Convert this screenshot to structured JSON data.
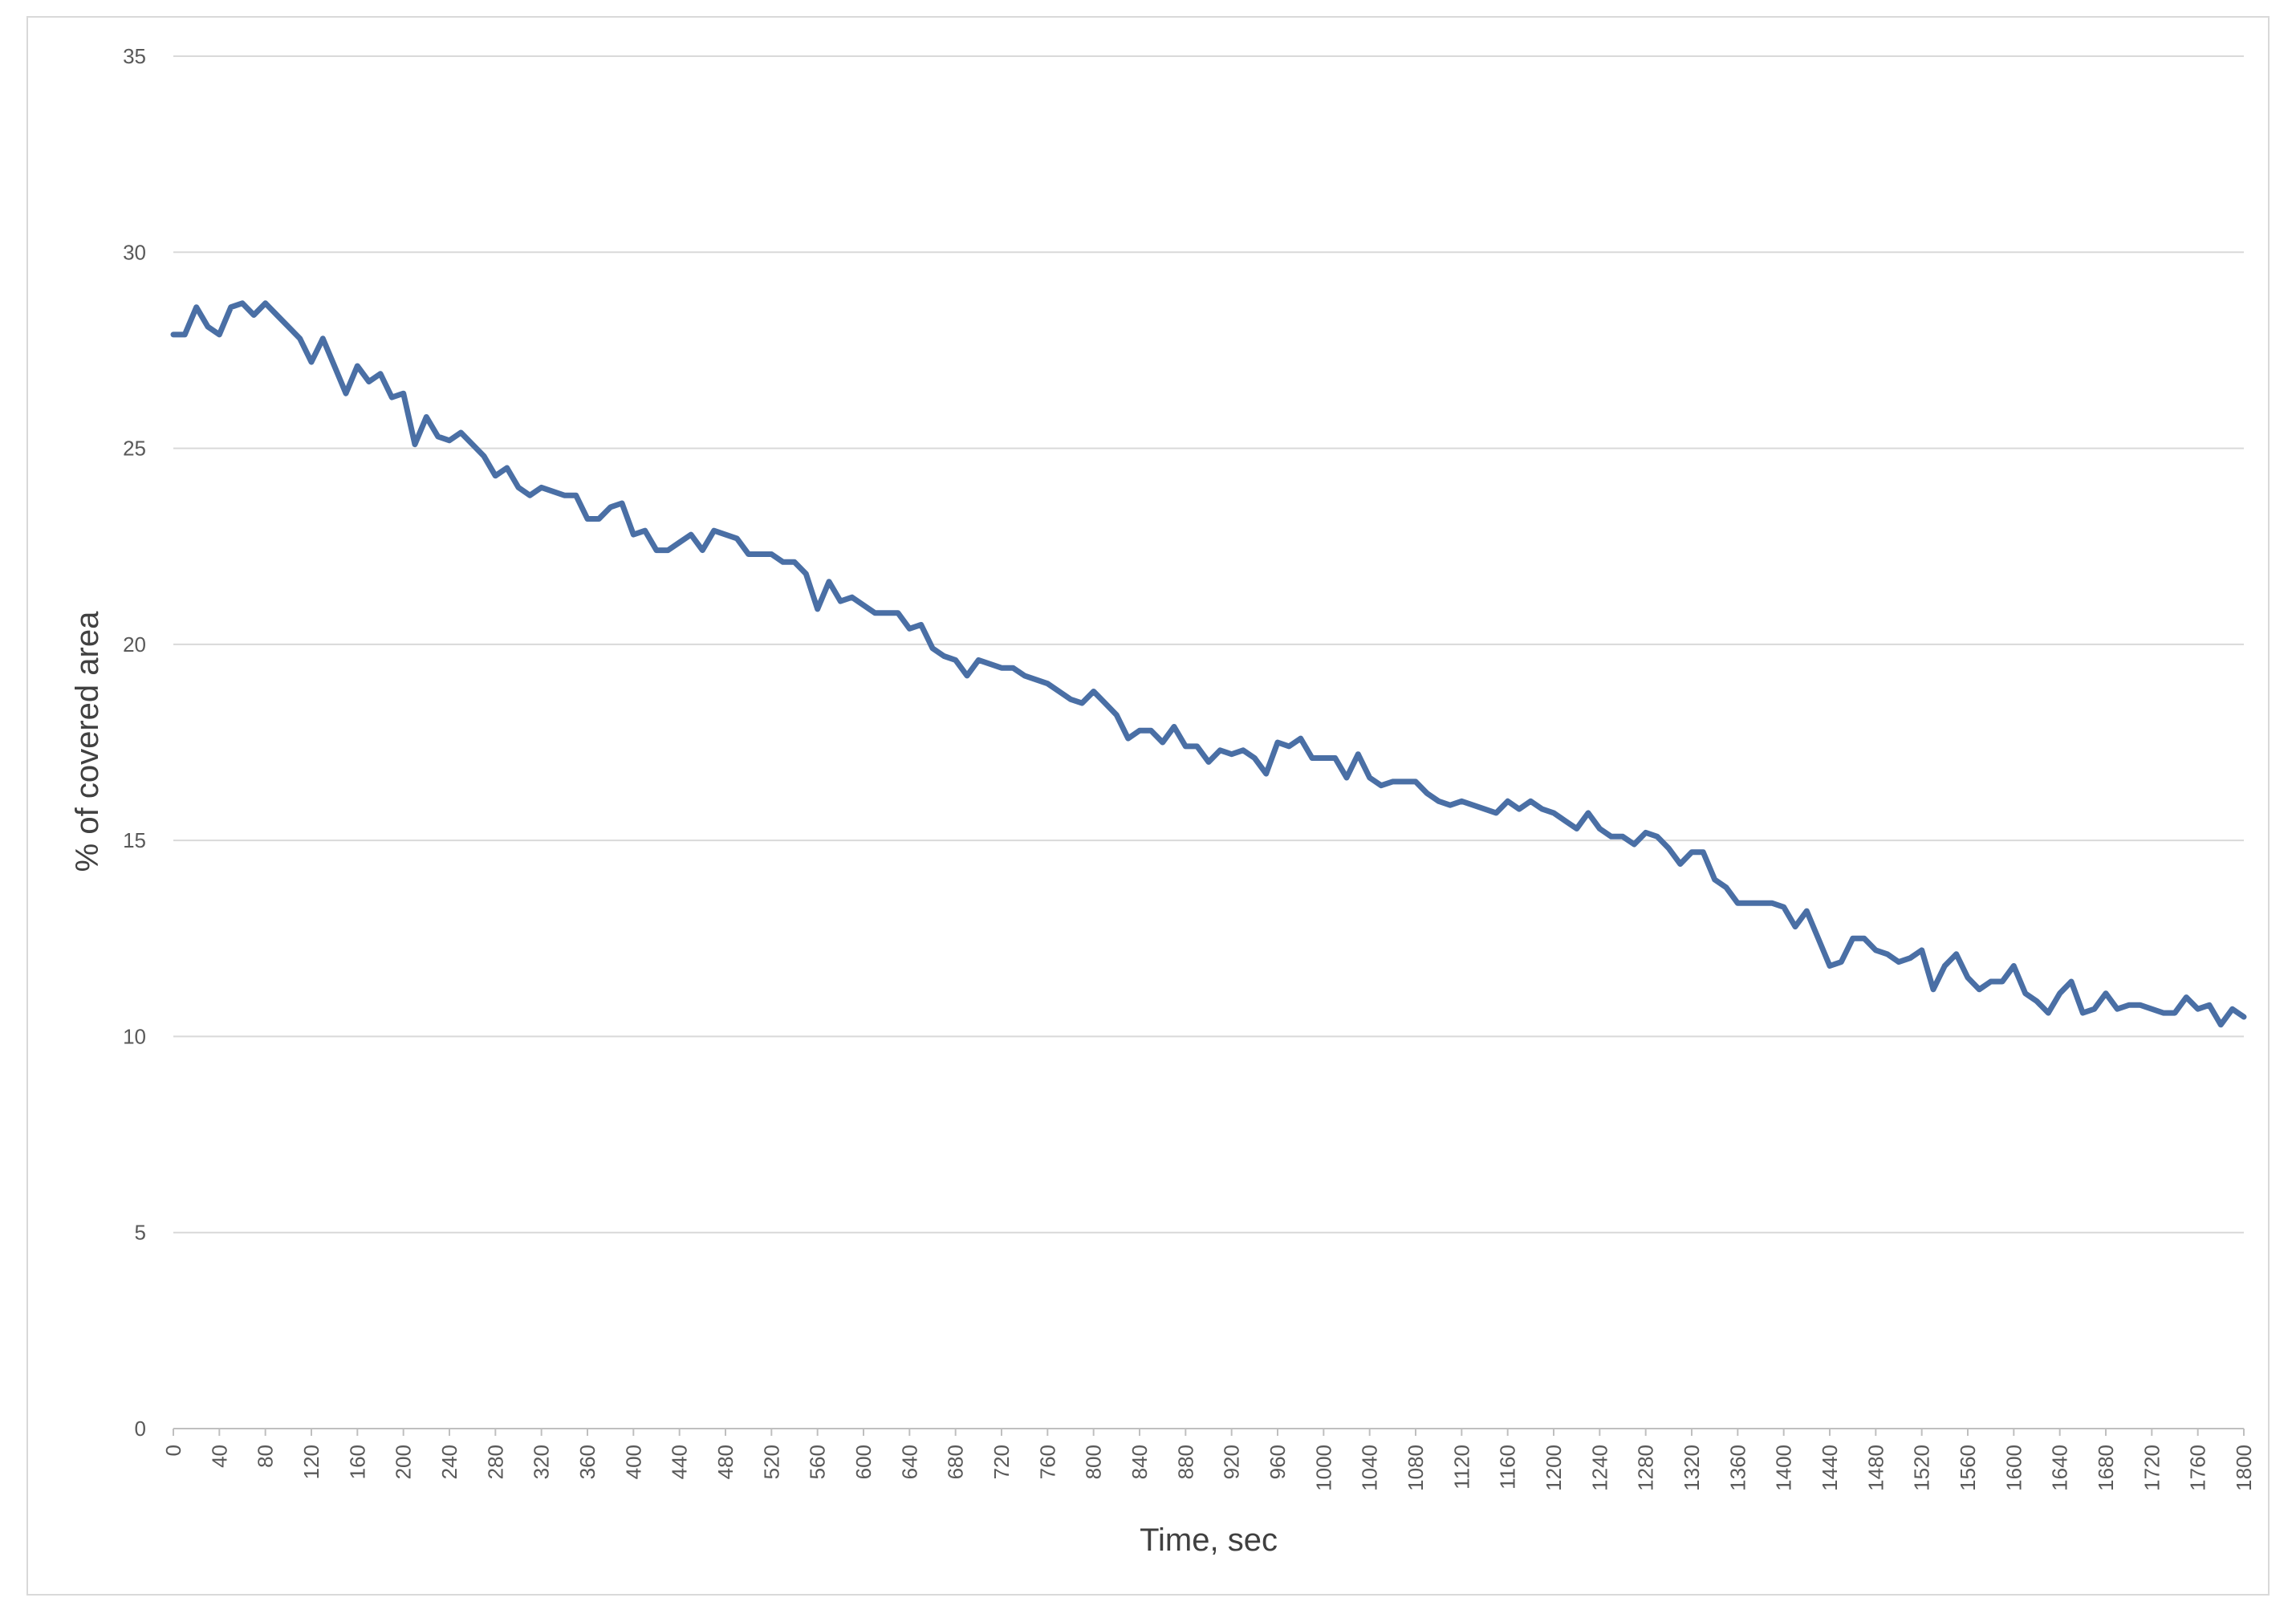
{
  "chart_data": {
    "type": "line",
    "title": "",
    "xlabel": "Time, sec",
    "ylabel": "% of covered area",
    "xlim": [
      0,
      1800
    ],
    "ylim": [
      0,
      35
    ],
    "y_ticks": [
      0,
      5,
      10,
      15,
      20,
      25,
      30,
      35
    ],
    "x_ticks": [
      0,
      40,
      80,
      120,
      160,
      200,
      240,
      280,
      320,
      360,
      400,
      440,
      480,
      520,
      560,
      600,
      640,
      680,
      720,
      760,
      800,
      840,
      880,
      920,
      960,
      1000,
      1040,
      1080,
      1120,
      1160,
      1200,
      1240,
      1280,
      1320,
      1360,
      1400,
      1440,
      1480,
      1520,
      1560,
      1600,
      1640,
      1680,
      1720,
      1760,
      1800
    ],
    "grid": true,
    "legend": "none",
    "line_color": "#4a6fa5",
    "series": [
      {
        "x": [
          0,
          10,
          20,
          30,
          40,
          50,
          60,
          70,
          80,
          90,
          100,
          110,
          120,
          130,
          140,
          150,
          160,
          170,
          180,
          190,
          200,
          210,
          220,
          230,
          240,
          250,
          260,
          270,
          280,
          290,
          300,
          310,
          320,
          330,
          340,
          350,
          360,
          370,
          380,
          390,
          400,
          410,
          420,
          430,
          440,
          450,
          460,
          470,
          480,
          490,
          500,
          510,
          520,
          530,
          540,
          550,
          560,
          570,
          580,
          590,
          600,
          610,
          620,
          630,
          640,
          650,
          660,
          670,
          680,
          690,
          700,
          710,
          720,
          730,
          740,
          750,
          760,
          770,
          780,
          790,
          800,
          810,
          820,
          830,
          840,
          850,
          860,
          870,
          880,
          890,
          900,
          910,
          920,
          930,
          940,
          950,
          960,
          970,
          980,
          990,
          1000,
          1010,
          1020,
          1030,
          1040,
          1050,
          1060,
          1070,
          1080,
          1090,
          1100,
          1110,
          1120,
          1130,
          1140,
          1150,
          1160,
          1170,
          1180,
          1190,
          1200,
          1210,
          1220,
          1230,
          1240,
          1250,
          1260,
          1270,
          1280,
          1290,
          1300,
          1310,
          1320,
          1330,
          1340,
          1350,
          1360,
          1370,
          1380,
          1390,
          1400,
          1410,
          1420,
          1430,
          1440,
          1450,
          1460,
          1470,
          1480,
          1490,
          1500,
          1510,
          1520,
          1530,
          1540,
          1550,
          1560,
          1570,
          1580,
          1590,
          1600,
          1610,
          1620,
          1630,
          1640,
          1650,
          1660,
          1670,
          1680,
          1690,
          1700,
          1710,
          1720,
          1730,
          1740,
          1750,
          1760,
          1770,
          1780,
          1790,
          1800
        ],
        "values": [
          27.9,
          27.9,
          28.6,
          28.1,
          27.9,
          28.6,
          28.7,
          28.4,
          28.7,
          28.4,
          28.1,
          27.8,
          27.2,
          27.8,
          27.1,
          26.4,
          27.1,
          26.7,
          26.9,
          26.3,
          26.4,
          25.1,
          25.8,
          25.3,
          25.2,
          25.4,
          25.1,
          24.8,
          24.3,
          24.5,
          24.0,
          23.8,
          24.0,
          23.9,
          23.8,
          23.8,
          23.2,
          23.2,
          23.5,
          23.6,
          22.8,
          22.9,
          22.4,
          22.4,
          22.6,
          22.8,
          22.4,
          22.9,
          22.8,
          22.7,
          22.3,
          22.3,
          22.3,
          22.1,
          22.1,
          21.8,
          20.9,
          21.6,
          21.1,
          21.2,
          21.0,
          20.8,
          20.8,
          20.8,
          20.4,
          20.5,
          19.9,
          19.7,
          19.6,
          19.2,
          19.6,
          19.5,
          19.4,
          19.4,
          19.2,
          19.1,
          19.0,
          18.8,
          18.6,
          18.5,
          18.8,
          18.5,
          18.2,
          17.6,
          17.8,
          17.8,
          17.5,
          17.9,
          17.4,
          17.4,
          17.0,
          17.3,
          17.2,
          17.3,
          17.1,
          16.7,
          17.5,
          17.4,
          17.6,
          17.1,
          17.1,
          17.1,
          16.6,
          17.2,
          16.6,
          16.4,
          16.5,
          16.5,
          16.5,
          16.2,
          16.0,
          15.9,
          16.0,
          15.9,
          15.8,
          15.7,
          16.0,
          15.8,
          16.0,
          15.8,
          15.7,
          15.5,
          15.3,
          15.7,
          15.3,
          15.1,
          15.1,
          14.9,
          15.2,
          15.1,
          14.8,
          14.4,
          14.7,
          14.7,
          14.0,
          13.8,
          13.4,
          13.4,
          13.4,
          13.4,
          13.3,
          12.8,
          13.2,
          12.5,
          11.8,
          11.9,
          12.5,
          12.5,
          12.2,
          12.1,
          11.9,
          12.0,
          12.2,
          11.2,
          11.8,
          12.1,
          11.5,
          11.2,
          11.4,
          11.4,
          11.8,
          11.1,
          10.9,
          10.6,
          11.1,
          11.4,
          10.6,
          10.7,
          11.1,
          10.7,
          10.8,
          10.8,
          10.7,
          10.6,
          10.6,
          11.0,
          10.7,
          10.8,
          10.3,
          10.7,
          10.5
        ]
      }
    ]
  }
}
